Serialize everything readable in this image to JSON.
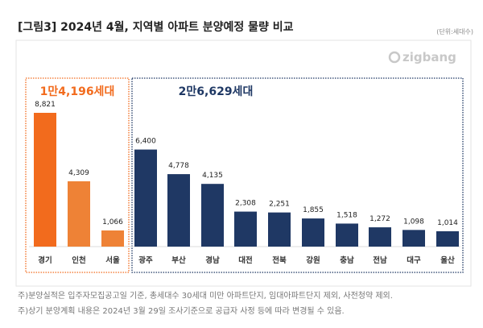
{
  "chart_data": {
    "type": "bar",
    "title": "[그림3] 2024년 4월, 지역별 아파트 분양예정 물량 비교",
    "unit": "(단위:세대수)",
    "logo": "zigbang",
    "groups": [
      {
        "label": "1만4,196세대",
        "color": "#F26B1D",
        "categories": [
          "경기",
          "인천",
          "서울"
        ],
        "values": [
          8821,
          4309,
          1066
        ],
        "value_labels": [
          "8,821",
          "4,309",
          "1,066"
        ],
        "bar_colors": [
          "#F26B1D",
          "#EE8236",
          "#EE8236"
        ]
      },
      {
        "label": "2만6,629세대",
        "color": "#1F3864",
        "categories": [
          "광주",
          "부산",
          "경남",
          "대전",
          "전북",
          "강원",
          "충남",
          "전남",
          "대구",
          "울산"
        ],
        "values": [
          6400,
          4778,
          4135,
          2308,
          2251,
          1855,
          1518,
          1272,
          1098,
          1014
        ],
        "value_labels": [
          "6,400",
          "4,778",
          "4,135",
          "2,308",
          "2,251",
          "1,855",
          "1,518",
          "1,272",
          "1,098",
          "1,014"
        ],
        "bar_colors": [
          "#1F3864",
          "#1F3864",
          "#1F3864",
          "#1F3864",
          "#1F3864",
          "#1F3864",
          "#1F3864",
          "#1F3864",
          "#1F3864",
          "#1F3864"
        ]
      }
    ],
    "ylim": [
      0,
      8821
    ],
    "grid": false
  },
  "notes": [
    "주)분양실적은 입주자모집공고일 기준, 총세대수 30세대 미만 아파트단지, 임대아파트단지 제외, 사전청약 제외.",
    "주)상기 분양계획 내용은 2024년 3월 29일 조사기준으로 공급자 사정 등에 따라 변경될 수 있음."
  ]
}
